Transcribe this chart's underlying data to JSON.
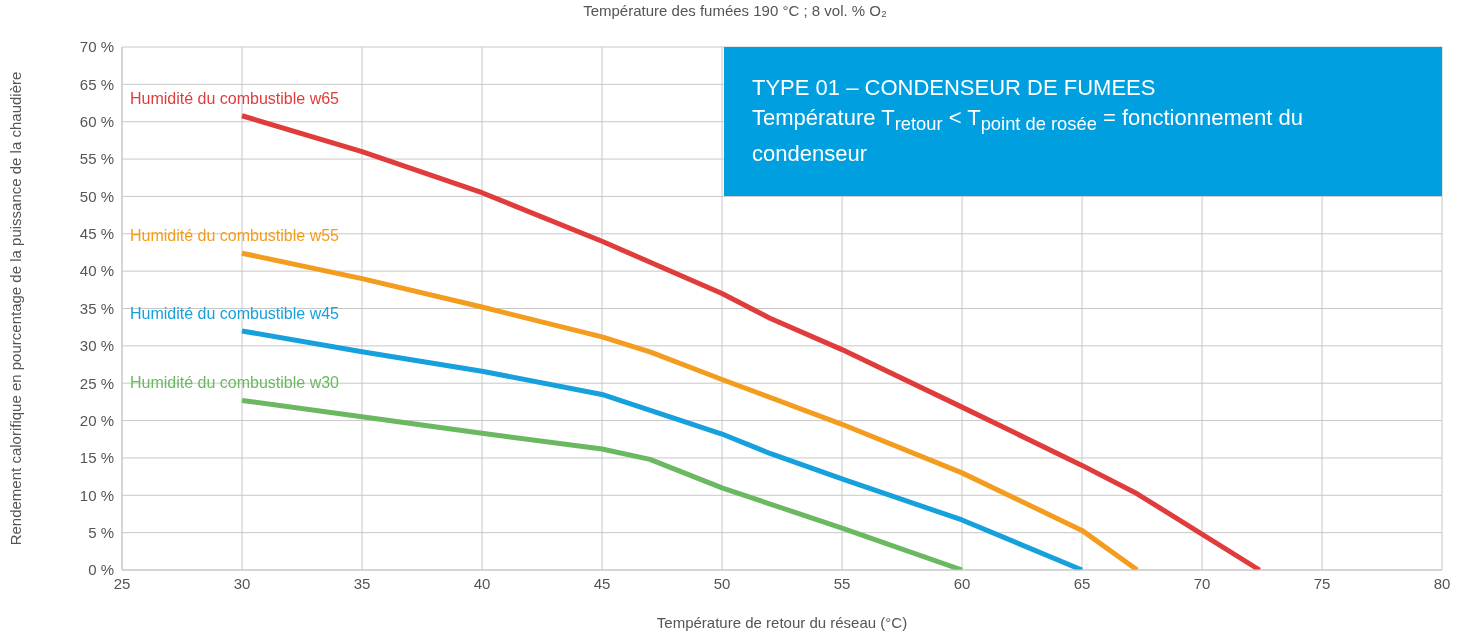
{
  "chart_data": {
    "type": "line",
    "title": "Température des fumées 190 °C ; 8 vol. % O₂",
    "xlabel": "Température de retour du réseau (°C)",
    "ylabel": "Rendement calorifique en pourcentage de la puissance de la chaudière",
    "annotations": [
      "TYPE 01 – CONDENSEUR DE FUMEES",
      "Température T$_{retour}$ < T$_{point de rosée}$ = fonctionnement du condenseur"
    ],
    "series": [
      {
        "name": "Humidité du combustible w65",
        "color": "#e03c3c",
        "x": [
          30,
          35,
          40,
          45,
          50,
          52,
          55,
          60,
          65,
          67.3,
          72.4
        ],
        "values": [
          60.8,
          56,
          50.5,
          44,
          37,
          33.7,
          29.5,
          21.8,
          14,
          10.2,
          0
        ]
      },
      {
        "name": "Humidité du combustible w55",
        "color": "#f39c1e",
        "x": [
          30,
          35,
          40,
          45,
          47,
          50,
          55,
          60,
          65,
          67.3
        ],
        "values": [
          42.4,
          39,
          35.2,
          31.2,
          29.2,
          25.5,
          19.5,
          13,
          5.3,
          0
        ]
      },
      {
        "name": "Humidité du combustible w45",
        "color": "#16a0dc",
        "x": [
          30,
          35,
          40,
          45,
          50,
          52,
          55,
          60,
          65
        ],
        "values": [
          32,
          29.2,
          26.6,
          23.5,
          18.2,
          15.6,
          12.2,
          6.7,
          0
        ]
      },
      {
        "name": "Humidité du combustible w30",
        "color": "#6ab960",
        "x": [
          30,
          35,
          40,
          45,
          47,
          50,
          55,
          60
        ],
        "values": [
          22.7,
          20.5,
          18.3,
          16.2,
          14.8,
          11,
          5.6,
          0
        ]
      }
    ],
    "xlim": [
      25,
      80
    ],
    "xticks": [
      25,
      30,
      35,
      40,
      45,
      50,
      55,
      60,
      65,
      70,
      75,
      80
    ],
    "ylim": [
      0,
      70
    ],
    "yticks": [
      {
        "value": 0,
        "label": "0 %"
      },
      {
        "value": 5,
        "label": "5 %"
      },
      {
        "value": 10,
        "label": "10 %"
      },
      {
        "value": 15,
        "label": "15 %"
      },
      {
        "value": 20,
        "label": "20 %"
      },
      {
        "value": 25,
        "label": "25 %"
      },
      {
        "value": 30,
        "label": "30 %"
      },
      {
        "value": 35,
        "label": "35 %"
      },
      {
        "value": 40,
        "label": "40 %"
      },
      {
        "value": 45,
        "label": "45 %"
      },
      {
        "value": 50,
        "label": "50 %"
      },
      {
        "value": 55,
        "label": "55 %"
      },
      {
        "value": 60,
        "label": "60 %"
      },
      {
        "value": 65,
        "label": "65 %"
      },
      {
        "value": 70,
        "label": "70 %"
      }
    ],
    "grid": true,
    "legend": false,
    "marker": "none",
    "line_style": "solid"
  }
}
